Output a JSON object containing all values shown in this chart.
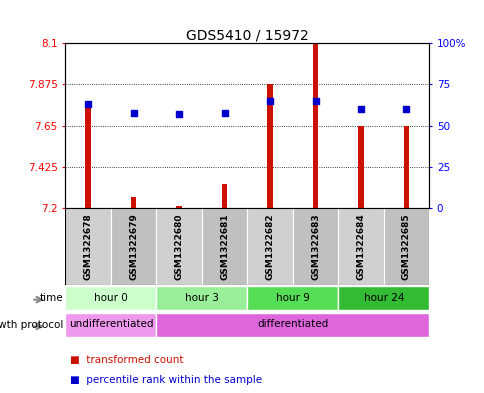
{
  "title": "GDS5410 / 15972",
  "samples": [
    "GSM1322678",
    "GSM1322679",
    "GSM1322680",
    "GSM1322681",
    "GSM1322682",
    "GSM1322683",
    "GSM1322684",
    "GSM1322685"
  ],
  "red_values": [
    7.75,
    7.26,
    7.21,
    7.33,
    7.88,
    8.1,
    7.65,
    7.65
  ],
  "blue_values": [
    63,
    58,
    57,
    58,
    65,
    65,
    60,
    60
  ],
  "ylim_left": [
    7.2,
    8.1
  ],
  "ylim_right": [
    0,
    100
  ],
  "yticks_left": [
    7.2,
    7.425,
    7.65,
    7.875,
    8.1
  ],
  "yticks_right": [
    0,
    25,
    50,
    75,
    100
  ],
  "ytick_labels_left": [
    "7.2",
    "7.425",
    "7.65",
    "7.875",
    "8.1"
  ],
  "ytick_labels_right": [
    "0",
    "25",
    "50",
    "75",
    "100%"
  ],
  "time_groups": [
    {
      "label": "hour 0",
      "start": 0,
      "end": 2,
      "color": "#ccffcc"
    },
    {
      "label": "hour 3",
      "start": 2,
      "end": 4,
      "color": "#99ee99"
    },
    {
      "label": "hour 9",
      "start": 4,
      "end": 6,
      "color": "#55dd55"
    },
    {
      "label": "hour 24",
      "start": 6,
      "end": 8,
      "color": "#33bb33"
    }
  ],
  "protocol_groups": [
    {
      "label": "undifferentiated",
      "start": 0,
      "end": 2,
      "color": "#ee99ee"
    },
    {
      "label": "differentiated",
      "start": 2,
      "end": 8,
      "color": "#dd66dd"
    }
  ],
  "bar_color": "#cc1100",
  "dot_color": "#0000cc",
  "legend_red_label": "transformed count",
  "legend_blue_label": "percentile rank within the sample"
}
